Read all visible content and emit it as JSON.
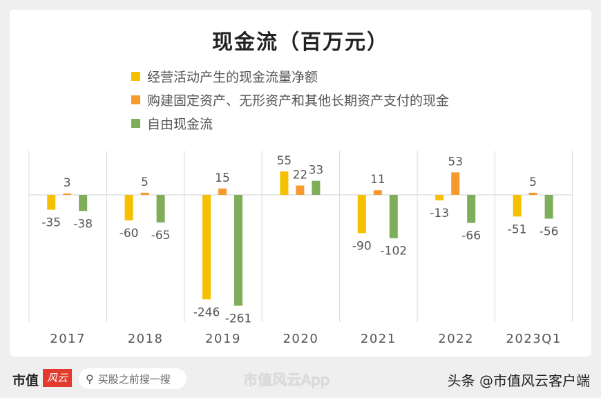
{
  "chart_data": {
    "type": "bar",
    "title": "现金流（百万元）",
    "categories": [
      "2017",
      "2018",
      "2019",
      "2020",
      "2021",
      "2022",
      "2023Q1"
    ],
    "series": [
      {
        "name": "经营活动产生的现金流量净额",
        "color": "#f5c000",
        "values": [
          -35,
          -60,
          -246,
          55,
          -90,
          -13,
          -51
        ]
      },
      {
        "name": "购建固定资产、无形资产和其他长期资产支付的现金",
        "color": "#f79a2e",
        "values": [
          3,
          5,
          15,
          22,
          11,
          53,
          5
        ]
      },
      {
        "name": "自由现金流",
        "color": "#7fad5a",
        "values": [
          -38,
          -65,
          -261,
          33,
          -102,
          -66,
          -56
        ]
      }
    ],
    "legend_position": "top",
    "grid": false
  },
  "footer": {
    "brand": "市值",
    "brand_logo": "风云",
    "search_placeholder": "买股之前搜一搜",
    "search_icon": "search-icon",
    "weibo": "市值风云App",
    "toutiao": "头条 @市值风云客户端"
  }
}
